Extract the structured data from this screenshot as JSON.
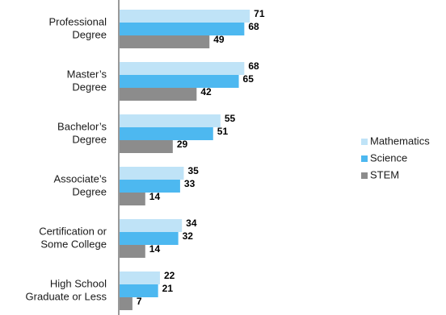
{
  "chart_data": {
    "type": "bar",
    "orientation": "horizontal",
    "categories": [
      [
        "Professional",
        "Degree"
      ],
      [
        "Master’s",
        "Degree"
      ],
      [
        "Bachelor’s",
        "Degree"
      ],
      [
        "Associate’s",
        "Degree"
      ],
      [
        "Certification or",
        "Some College"
      ],
      [
        "High School",
        "Graduate or Less"
      ]
    ],
    "series": [
      {
        "name": "Mathematics",
        "color": "#bfe3f7",
        "values": [
          71,
          68,
          55,
          35,
          34,
          22
        ]
      },
      {
        "name": "Science",
        "color": "#4db8f0",
        "values": [
          68,
          65,
          51,
          33,
          32,
          21
        ]
      },
      {
        "name": "STEM",
        "color": "#8c8c8c",
        "values": [
          49,
          42,
          29,
          14,
          14,
          7
        ]
      }
    ],
    "xlim": [
      0,
      80
    ],
    "data_labels": true,
    "legend_position": "right"
  }
}
